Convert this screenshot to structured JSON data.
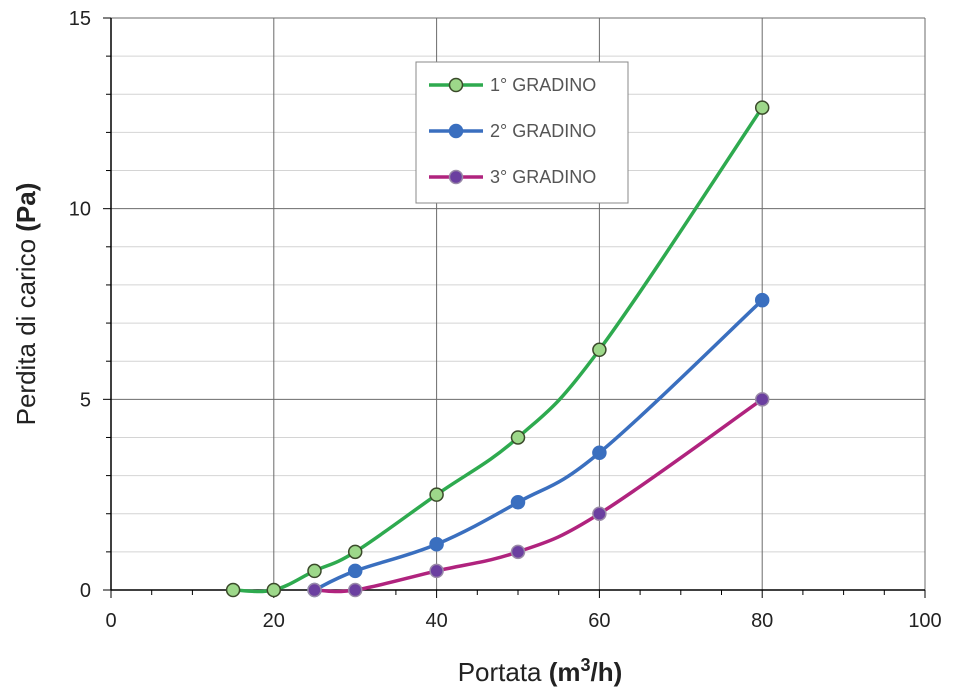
{
  "chart_data": {
    "type": "line",
    "title": "",
    "xlabel_plain": "Portata ",
    "xlabel_bold_open": "(m",
    "xlabel_sup": "3",
    "xlabel_bold_close": "/h)",
    "ylabel_plain": "Perdita di carico ",
    "ylabel_bold": "(Pa)",
    "xlim": [
      0,
      100
    ],
    "ylim": [
      0,
      15
    ],
    "x_major_ticks": [
      0,
      20,
      40,
      60,
      80,
      100
    ],
    "x_minor_step": 5,
    "y_major_ticks": [
      0,
      5,
      10,
      15
    ],
    "y_minor_step": 1,
    "grid": true,
    "legend_position": "top-center",
    "series": [
      {
        "name": "1° GRADINO",
        "color": "#2eaa4f",
        "marker_fill": "#9dd88a",
        "marker_stroke": "#3a4a2a",
        "points": [
          [
            15,
            0
          ],
          [
            20,
            0
          ],
          [
            25,
            0.5
          ],
          [
            30,
            1.0
          ],
          [
            40,
            2.5
          ],
          [
            50,
            4.0
          ],
          [
            60,
            6.3
          ],
          [
            80,
            12.65
          ]
        ]
      },
      {
        "name": "2° GRADINO",
        "color": "#3a6fbf",
        "marker_fill": "#3a6fbf",
        "marker_stroke": "#3a6fbf",
        "points": [
          [
            25,
            0
          ],
          [
            30,
            0.5
          ],
          [
            40,
            1.2
          ],
          [
            50,
            2.3
          ],
          [
            60,
            3.6
          ],
          [
            80,
            7.6
          ]
        ]
      },
      {
        "name": "3° GRADINO",
        "color": "#b0237e",
        "marker_fill": "#6b3fa0",
        "marker_stroke": "#9a8aa8",
        "points": [
          [
            25,
            0
          ],
          [
            30,
            0
          ],
          [
            40,
            0.5
          ],
          [
            50,
            1.0
          ],
          [
            60,
            2.0
          ],
          [
            80,
            5.0
          ]
        ]
      }
    ]
  }
}
